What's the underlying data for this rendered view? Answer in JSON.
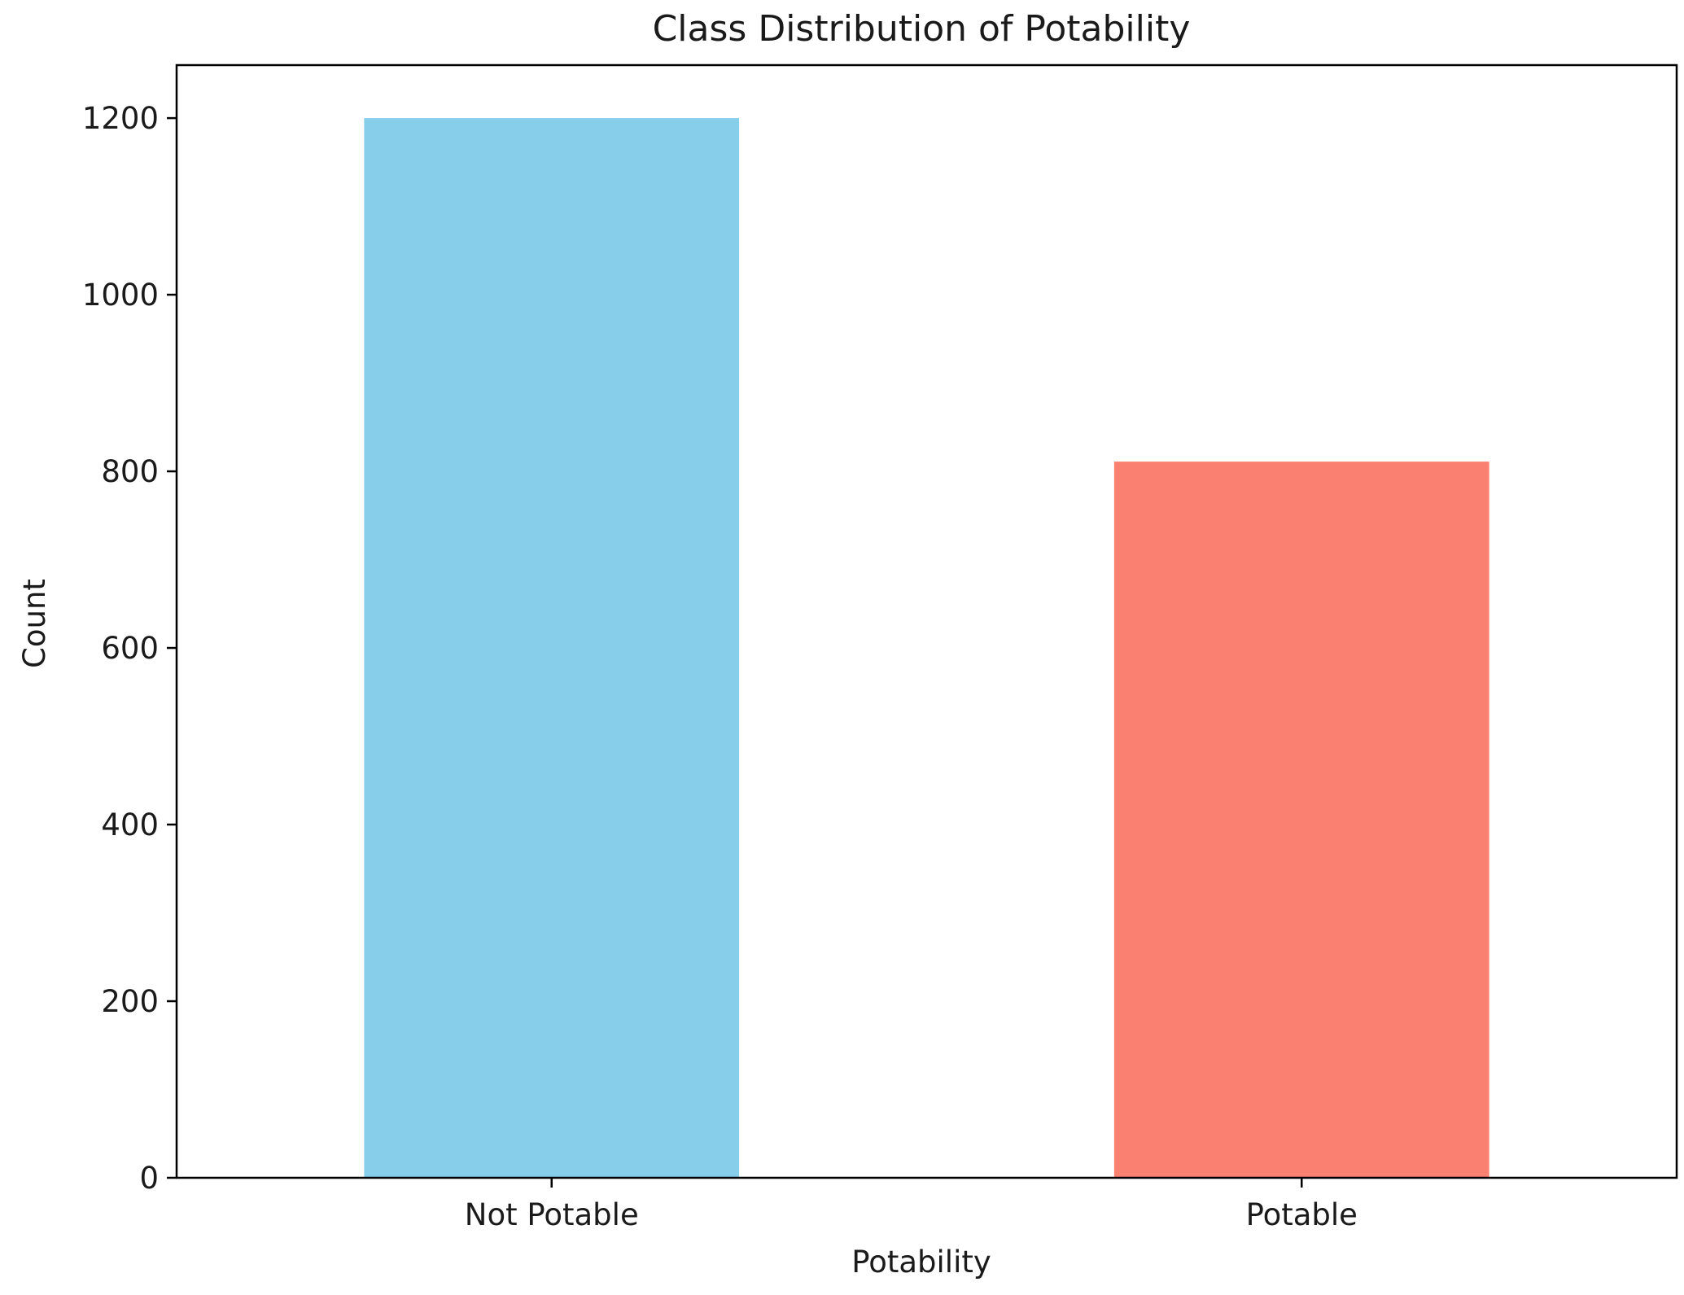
{
  "chart_data": {
    "type": "bar",
    "title": "Class Distribution of Potability",
    "xlabel": "Potability",
    "ylabel": "Count",
    "categories": [
      "Not Potable",
      "Potable"
    ],
    "values": [
      1200,
      811
    ],
    "colors": [
      "#87CEEB",
      "#FA8072"
    ],
    "ylim": [
      0,
      1260
    ],
    "yticks": [
      0,
      200,
      400,
      600,
      800,
      1000,
      1200
    ],
    "ytick_labels": [
      "0",
      "200",
      "400",
      "600",
      "800",
      "1000",
      "1200"
    ],
    "grid": false,
    "legend": null
  }
}
